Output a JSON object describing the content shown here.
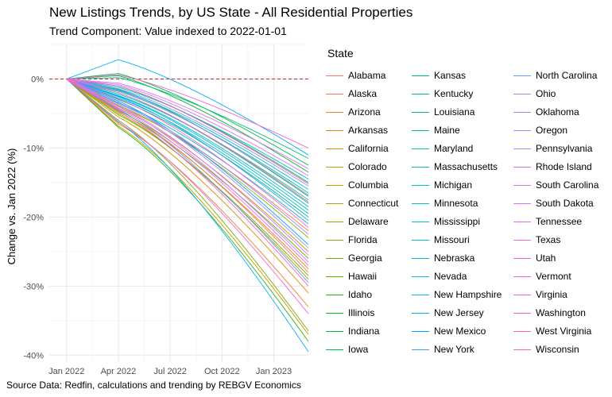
{
  "title": "New Listings Trends, by US State - All Residential Properties",
  "subtitle": "Trend Component: Value indexed to 2022-01-01",
  "caption": "Source Data: Redfin, calculations and trending by REBGV Economics",
  "chart_data": {
    "type": "line",
    "ylabel": "Change vs. Jan 2022 (%)",
    "xlabel": "",
    "x_ticks": [
      "Jan 2022",
      "Apr 2022",
      "Jul 2022",
      "Oct 2022",
      "Jan 2023"
    ],
    "x_range": [
      "2021-12",
      "2023-03"
    ],
    "y_ticks": [
      "0%",
      "-10%",
      "-20%",
      "-30%",
      "-40%"
    ],
    "ylim": [
      -41,
      5
    ],
    "reference_line": 0,
    "grid": true,
    "legend_title": "State",
    "legend_position": "right",
    "x": [
      "2022-01",
      "2022-04",
      "2023-03"
    ],
    "series": [
      {
        "name": "Alabama",
        "color": "#F8766D",
        "values": [
          0,
          -4.5,
          -28.0
        ]
      },
      {
        "name": "Alaska",
        "color": "#F17D4F",
        "values": [
          0,
          -4.0,
          -22.0
        ]
      },
      {
        "name": "Arizona",
        "color": "#E98428",
        "values": [
          0,
          -6.5,
          -33.0
        ]
      },
      {
        "name": "Arkansas",
        "color": "#DF8B0B",
        "values": [
          0,
          -4.8,
          -27.5
        ]
      },
      {
        "name": "California",
        "color": "#D39200",
        "values": [
          0,
          -5.5,
          -31.0
        ]
      },
      {
        "name": "Colorado",
        "color": "#C69900",
        "values": [
          0,
          -6.8,
          -37.0
        ]
      },
      {
        "name": "Columbia",
        "color": "#B79F00",
        "values": [
          0,
          -4.2,
          -25.0
        ]
      },
      {
        "name": "Connecticut",
        "color": "#A7A500",
        "values": [
          0,
          -5.0,
          -29.0
        ]
      },
      {
        "name": "Delaware",
        "color": "#95A900",
        "values": [
          0,
          -3.8,
          -23.0
        ]
      },
      {
        "name": "Florida",
        "color": "#81AD00",
        "values": [
          0,
          -6.0,
          -36.5
        ]
      },
      {
        "name": "Georgia",
        "color": "#6BB100",
        "values": [
          0,
          -5.2,
          -28.5
        ]
      },
      {
        "name": "Hawaii",
        "color": "#50B400",
        "values": [
          0,
          -4.6,
          -26.0
        ]
      },
      {
        "name": "Idaho",
        "color": "#22B600",
        "values": [
          0,
          -7.0,
          -38.0
        ]
      },
      {
        "name": "Illinois",
        "color": "#00B81F",
        "values": [
          0,
          0.5,
          -13.5
        ]
      },
      {
        "name": "Indiana",
        "color": "#00BA38",
        "values": [
          0,
          -1.5,
          -17.0
        ]
      },
      {
        "name": "Iowa",
        "color": "#00BB4C",
        "values": [
          0,
          0.8,
          -12.5
        ]
      },
      {
        "name": "Kansas",
        "color": "#00BD5D",
        "values": [
          0,
          -1.0,
          -15.0
        ]
      },
      {
        "name": "Kentucky",
        "color": "#00BE6D",
        "values": [
          0,
          -2.0,
          -18.0
        ]
      },
      {
        "name": "Louisiana",
        "color": "#00BF7D",
        "values": [
          0,
          -3.0,
          -20.0
        ]
      },
      {
        "name": "Maine",
        "color": "#00C08B",
        "values": [
          0,
          0.2,
          -11.5
        ]
      },
      {
        "name": "Maryland",
        "color": "#00C199",
        "values": [
          0,
          -2.5,
          -19.0
        ]
      },
      {
        "name": "Massachusetts",
        "color": "#00C1A7",
        "values": [
          0,
          -1.8,
          -16.5
        ]
      },
      {
        "name": "Michigan",
        "color": "#00C0B3",
        "values": [
          0,
          -2.2,
          -17.5
        ]
      },
      {
        "name": "Minnesota",
        "color": "#00BFC0",
        "values": [
          0,
          -1.2,
          -14.5
        ]
      },
      {
        "name": "Mississippi",
        "color": "#00BECC",
        "values": [
          0,
          -3.5,
          -21.0
        ]
      },
      {
        "name": "Missouri",
        "color": "#00BCD8",
        "values": [
          0,
          -2.8,
          -19.5
        ]
      },
      {
        "name": "Nebraska",
        "color": "#00B9E3",
        "values": [
          0,
          -1.6,
          -16.0
        ]
      },
      {
        "name": "Nevada",
        "color": "#00B5EE",
        "values": [
          0,
          -6.2,
          -39.5
        ]
      },
      {
        "name": "New Hampshire",
        "color": "#00B0F6",
        "values": [
          0,
          2.8,
          -11.0
        ]
      },
      {
        "name": "New Jersey",
        "color": "#00ABFD",
        "values": [
          0,
          -2.4,
          -18.5
        ]
      },
      {
        "name": "New Mexico",
        "color": "#00A5FF",
        "values": [
          0,
          -3.2,
          -24.0
        ]
      },
      {
        "name": "New York",
        "color": "#35A2FF",
        "values": [
          0,
          -2.6,
          -20.5
        ]
      },
      {
        "name": "North Carolina",
        "color": "#619CFF",
        "values": [
          0,
          -4.4,
          -29.5
        ]
      },
      {
        "name": "Ohio",
        "color": "#7E96FF",
        "values": [
          0,
          -1.4,
          -15.5
        ]
      },
      {
        "name": "Oklahoma",
        "color": "#958FFF",
        "values": [
          0,
          -3.6,
          -22.5
        ]
      },
      {
        "name": "Oregon",
        "color": "#A989FF",
        "values": [
          0,
          -3.4,
          -24.5
        ]
      },
      {
        "name": "Pennsylvania",
        "color": "#B983FF",
        "values": [
          0,
          -1.7,
          -16.8
        ]
      },
      {
        "name": "Rhode Island",
        "color": "#C77CFF",
        "values": [
          0,
          -0.8,
          -14.0
        ]
      },
      {
        "name": "South Carolina",
        "color": "#D277FF",
        "values": [
          0,
          -4.0,
          -26.5
        ]
      },
      {
        "name": "South Dakota",
        "color": "#DC72FB",
        "values": [
          0,
          -0.6,
          -13.0
        ]
      },
      {
        "name": "Tennessee",
        "color": "#E56DF5",
        "values": [
          0,
          -3.9,
          -25.5
        ]
      },
      {
        "name": "Texas",
        "color": "#ED68ED",
        "values": [
          0,
          -4.3,
          -27.0
        ]
      },
      {
        "name": "Utah",
        "color": "#F464E4",
        "values": [
          0,
          -6.3,
          -34.0
        ]
      },
      {
        "name": "Vermont",
        "color": "#F962DA",
        "values": [
          0,
          0.6,
          -10.0
        ]
      },
      {
        "name": "Virginia",
        "color": "#FD61D0",
        "values": [
          0,
          -2.9,
          -21.5
        ]
      },
      {
        "name": "Washington",
        "color": "#FF61C5",
        "values": [
          0,
          -4.7,
          -30.0
        ]
      },
      {
        "name": "West Virginia",
        "color": "#FF63B8",
        "values": [
          0,
          -2.0,
          -17.8
        ]
      },
      {
        "name": "Wisconsin",
        "color": "#FF66AA",
        "values": [
          0,
          -1.0,
          -15.2
        ]
      }
    ]
  }
}
